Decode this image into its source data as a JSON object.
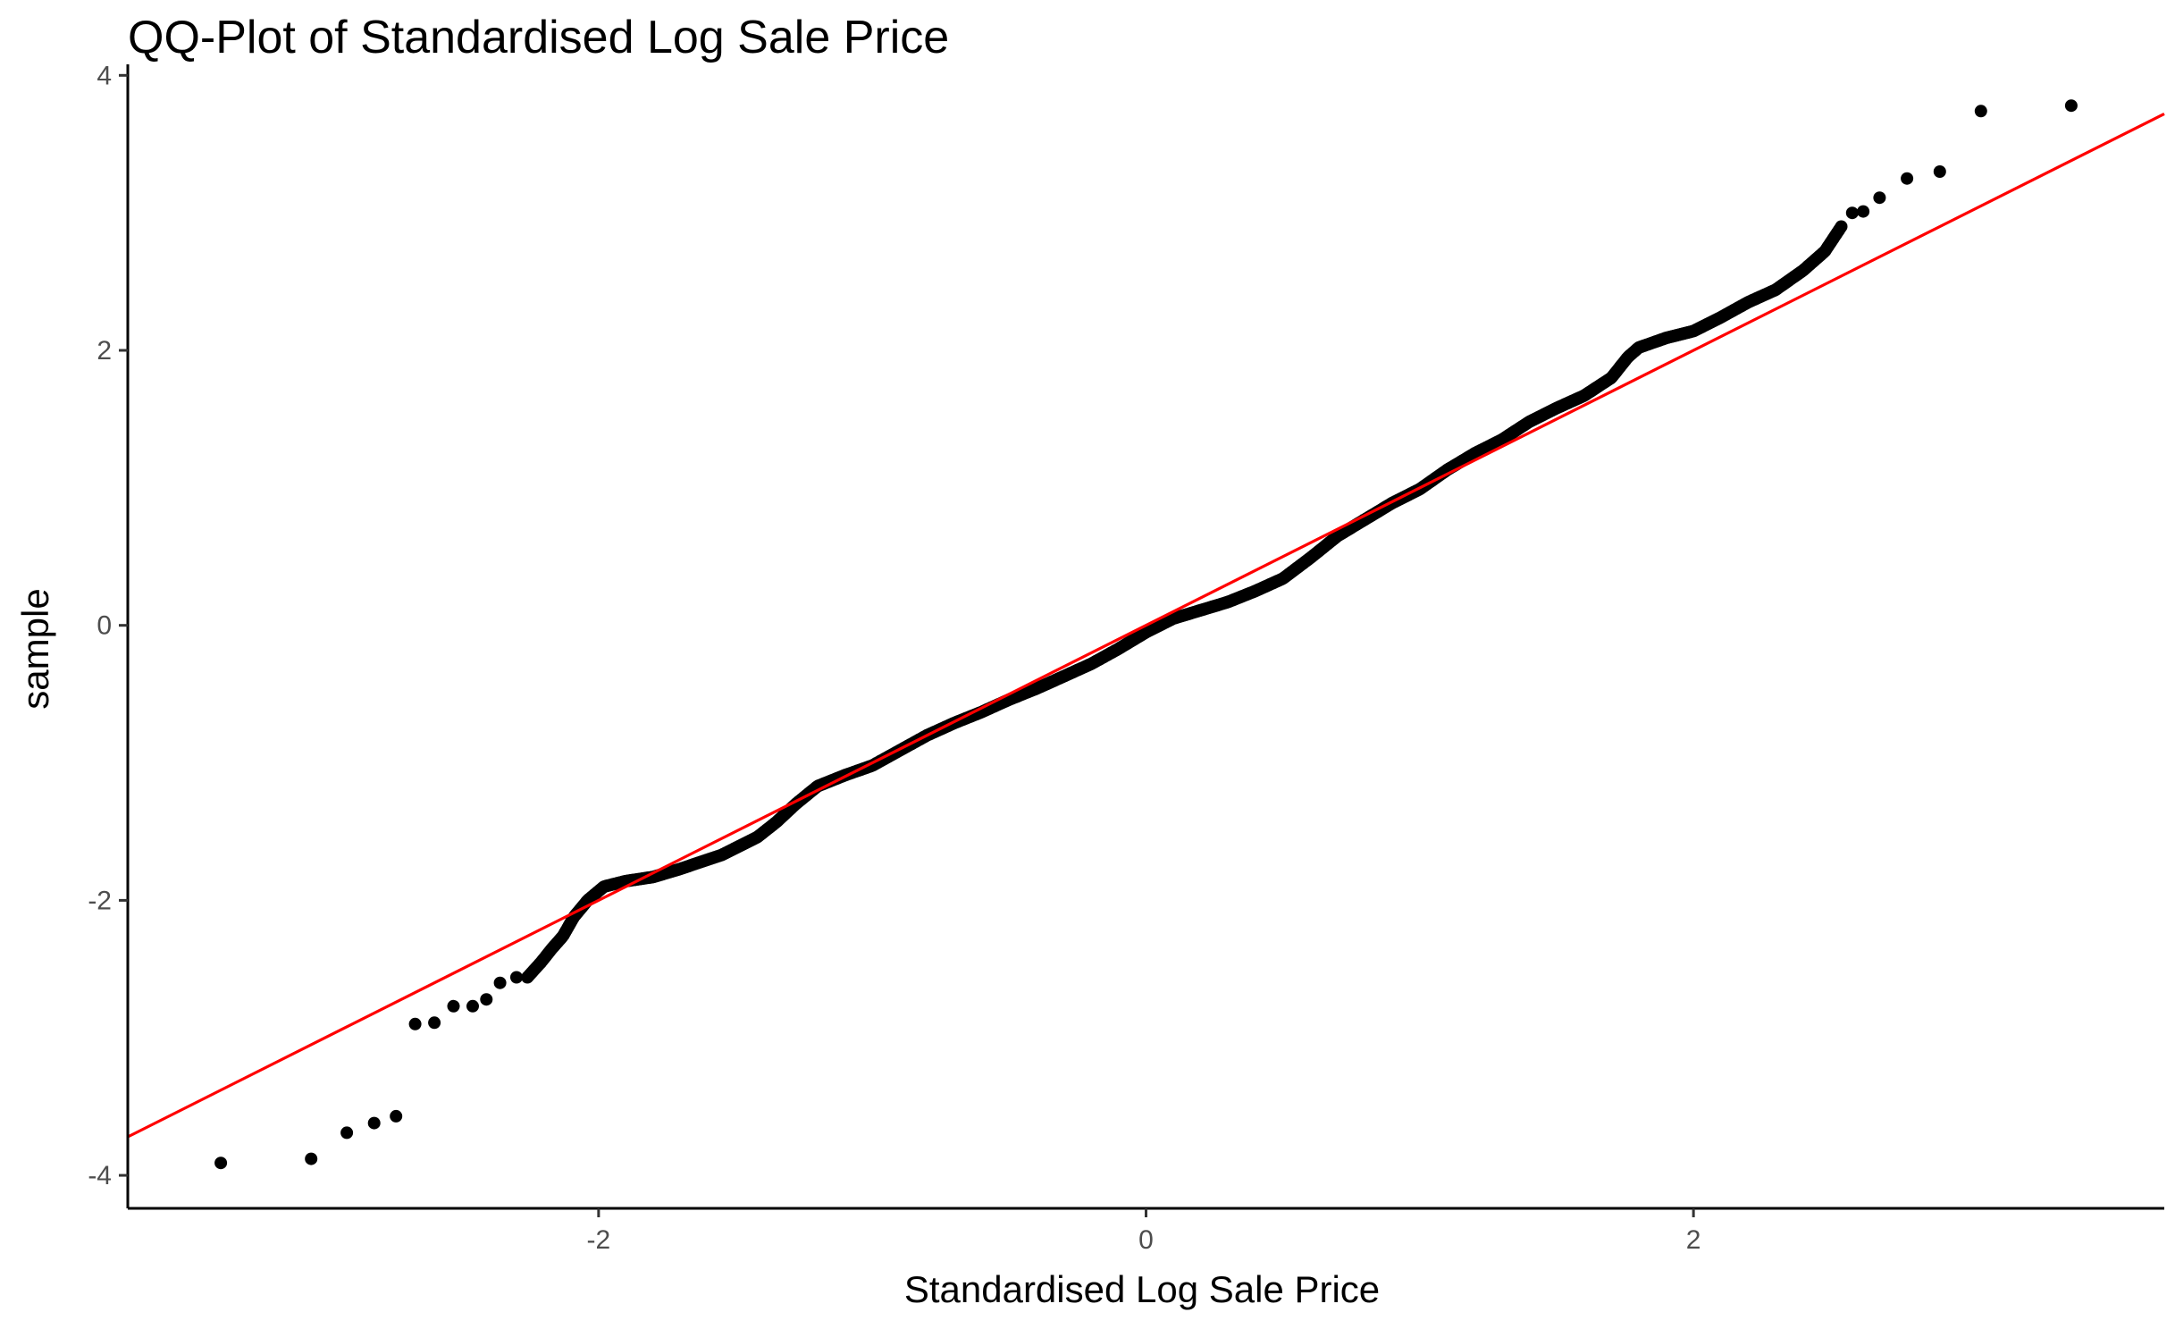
{
  "chart_data": {
    "type": "scatter",
    "title": "QQ-Plot of Standardised Log Sale Price",
    "xlabel": "Standardised Log Sale Price",
    "ylabel": "sample",
    "xlim": [
      -3.72,
      3.72
    ],
    "ylim": [
      -4.24,
      4.08
    ],
    "x_ticks": [
      -2,
      0,
      2
    ],
    "x_tick_labels": [
      "-2",
      "0",
      "2"
    ],
    "y_ticks": [
      -4,
      -2,
      0,
      2,
      4
    ],
    "y_tick_labels": [
      "-4",
      "-2",
      "0",
      "2",
      "4"
    ],
    "grid": false,
    "colors": {
      "points": "#000000",
      "reference_line": "#ff0000",
      "axes": "#000000",
      "tick_labels": "#4d4d4d"
    },
    "reference_line": {
      "slope": 1.0,
      "intercept": 0.0
    },
    "anchors": [
      [
        -3.38,
        -3.91
      ],
      [
        -3.05,
        -3.88
      ],
      [
        -2.92,
        -3.69
      ],
      [
        -2.82,
        -3.62
      ],
      [
        -2.74,
        -3.57
      ],
      [
        -2.67,
        -2.9
      ],
      [
        -2.6,
        -2.89
      ],
      [
        -2.53,
        -2.77
      ],
      [
        -2.46,
        -2.77
      ],
      [
        -2.41,
        -2.72
      ],
      [
        -2.36,
        -2.6
      ],
      [
        -2.3,
        -2.56
      ],
      [
        -2.26,
        -2.56
      ],
      [
        -2.21,
        -2.45
      ],
      [
        -2.17,
        -2.35
      ],
      [
        -2.13,
        -2.26
      ],
      [
        -2.09,
        -2.12
      ],
      [
        -2.04,
        -2.0
      ],
      [
        -1.98,
        -1.9
      ],
      [
        -1.9,
        -1.86
      ],
      [
        -1.8,
        -1.83
      ],
      [
        -1.7,
        -1.77
      ],
      [
        -1.55,
        -1.67
      ],
      [
        -1.42,
        -1.54
      ],
      [
        -1.35,
        -1.43
      ],
      [
        -1.28,
        -1.3
      ],
      [
        -1.2,
        -1.17
      ],
      [
        -1.1,
        -1.09
      ],
      [
        -1.0,
        -1.02
      ],
      [
        -0.9,
        -0.91
      ],
      [
        -0.8,
        -0.8
      ],
      [
        -0.7,
        -0.71
      ],
      [
        -0.6,
        -0.63
      ],
      [
        -0.5,
        -0.54
      ],
      [
        -0.4,
        -0.46
      ],
      [
        -0.3,
        -0.37
      ],
      [
        -0.2,
        -0.28
      ],
      [
        -0.1,
        -0.17
      ],
      [
        0.0,
        -0.05
      ],
      [
        0.1,
        0.05
      ],
      [
        0.2,
        0.11
      ],
      [
        0.3,
        0.17
      ],
      [
        0.4,
        0.25
      ],
      [
        0.5,
        0.34
      ],
      [
        0.6,
        0.49
      ],
      [
        0.7,
        0.65
      ],
      [
        0.8,
        0.77
      ],
      [
        0.9,
        0.89
      ],
      [
        1.0,
        0.99
      ],
      [
        1.1,
        1.13
      ],
      [
        1.2,
        1.25
      ],
      [
        1.3,
        1.35
      ],
      [
        1.4,
        1.48
      ],
      [
        1.5,
        1.58
      ],
      [
        1.6,
        1.67
      ],
      [
        1.7,
        1.8
      ],
      [
        1.76,
        1.95
      ],
      [
        1.8,
        2.02
      ],
      [
        1.9,
        2.09
      ],
      [
        2.0,
        2.14
      ],
      [
        2.1,
        2.24
      ],
      [
        2.2,
        2.35
      ],
      [
        2.3,
        2.44
      ],
      [
        2.4,
        2.58
      ],
      [
        2.48,
        2.72
      ],
      [
        2.54,
        2.9
      ]
    ],
    "tail_points": [
      [
        2.58,
        3.0
      ],
      [
        2.62,
        3.01
      ],
      [
        2.68,
        3.11
      ],
      [
        2.78,
        3.25
      ],
      [
        2.9,
        3.3
      ],
      [
        3.05,
        3.74
      ],
      [
        3.38,
        3.78
      ]
    ],
    "n_points": 1000
  }
}
